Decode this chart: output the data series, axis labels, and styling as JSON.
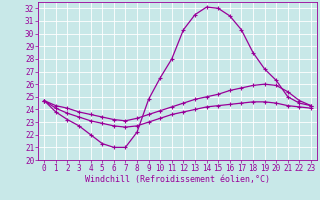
{
  "xlabel": "Windchill (Refroidissement éolien,°C)",
  "bg_color": "#c8e8e8",
  "line_color": "#990099",
  "grid_color": "#ffffff",
  "xlim": [
    -0.5,
    23.5
  ],
  "ylim": [
    20,
    32.5
  ],
  "xticks": [
    0,
    1,
    2,
    3,
    4,
    5,
    6,
    7,
    8,
    9,
    10,
    11,
    12,
    13,
    14,
    15,
    16,
    17,
    18,
    19,
    20,
    21,
    22,
    23
  ],
  "yticks": [
    20,
    21,
    22,
    23,
    24,
    25,
    26,
    27,
    28,
    29,
    30,
    31,
    32
  ],
  "curve1_x": [
    0,
    1,
    2,
    3,
    4,
    5,
    6,
    7,
    8,
    9,
    10,
    11,
    12,
    13,
    14,
    15,
    16,
    17,
    18,
    19,
    20,
    21,
    22,
    23
  ],
  "curve1_y": [
    24.7,
    23.8,
    23.2,
    22.7,
    22.0,
    21.3,
    21.0,
    21.0,
    22.2,
    24.8,
    26.5,
    28.0,
    30.3,
    31.5,
    32.1,
    32.0,
    31.4,
    30.3,
    28.5,
    27.2,
    26.3,
    25.0,
    24.5,
    24.3
  ],
  "curve2_x": [
    0,
    1,
    2,
    3,
    4,
    5,
    6,
    7,
    8,
    9,
    10,
    11,
    12,
    13,
    14,
    15,
    16,
    17,
    18,
    19,
    20,
    21,
    22,
    23
  ],
  "curve2_y": [
    24.7,
    24.3,
    24.1,
    23.8,
    23.6,
    23.4,
    23.2,
    23.1,
    23.3,
    23.6,
    23.9,
    24.2,
    24.5,
    24.8,
    25.0,
    25.2,
    25.5,
    25.7,
    25.9,
    26.0,
    25.9,
    25.4,
    24.7,
    24.3
  ],
  "curve3_x": [
    0,
    1,
    2,
    3,
    4,
    5,
    6,
    7,
    8,
    9,
    10,
    11,
    12,
    13,
    14,
    15,
    16,
    17,
    18,
    19,
    20,
    21,
    22,
    23
  ],
  "curve3_y": [
    24.7,
    24.1,
    23.7,
    23.4,
    23.1,
    22.9,
    22.7,
    22.6,
    22.7,
    23.0,
    23.3,
    23.6,
    23.8,
    24.0,
    24.2,
    24.3,
    24.4,
    24.5,
    24.6,
    24.6,
    24.5,
    24.3,
    24.2,
    24.1
  ],
  "tick_fontsize": 5.5,
  "label_fontsize": 6.0,
  "marker_size": 2.5,
  "line_width": 0.9
}
